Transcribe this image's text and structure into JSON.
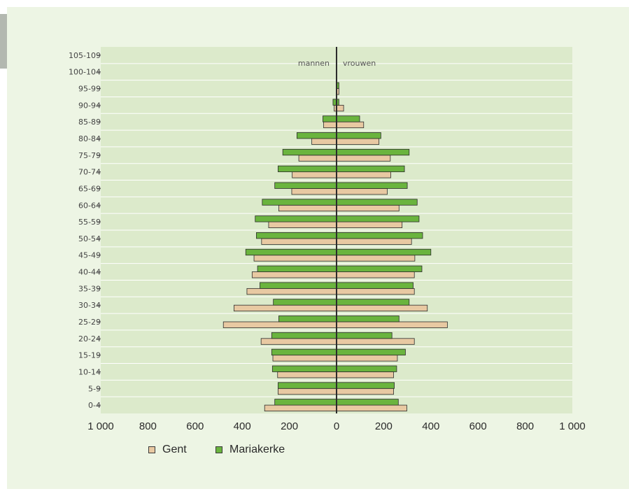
{
  "chart_data": {
    "type": "bar",
    "orientation": "horizontal-population-pyramid",
    "categories": [
      "0-4",
      "5-9",
      "10-14",
      "15-19",
      "20-24",
      "25-29",
      "30-34",
      "35-39",
      "40-44",
      "45-49",
      "50-54",
      "55-59",
      "60-64",
      "65-69",
      "70-74",
      "75-79",
      "80-84",
      "85-89",
      "90-94",
      "95-99",
      "100-104",
      "105-109"
    ],
    "left_label": "mannen",
    "right_label": "vrouwen",
    "xlim": [
      -1000,
      1000
    ],
    "x_ticks": [
      -1000,
      -800,
      -600,
      -400,
      -200,
      0,
      200,
      400,
      600,
      800,
      1000
    ],
    "x_tick_labels": [
      "1 000",
      "800",
      "600",
      "400",
      "200",
      "0",
      "200",
      "400",
      "600",
      "800",
      "1 000"
    ],
    "series": [
      {
        "name": "Gent",
        "color": "#e8c9a2",
        "men": [
          305,
          248,
          250,
          270,
          320,
          480,
          435,
          380,
          358,
          350,
          318,
          288,
          245,
          190,
          188,
          160,
          105,
          55,
          10,
          0,
          0,
          0
        ],
        "women": [
          298,
          242,
          242,
          258,
          330,
          470,
          385,
          330,
          330,
          332,
          318,
          278,
          265,
          215,
          230,
          228,
          180,
          115,
          30,
          10,
          0,
          0
        ]
      },
      {
        "name": "Mariakerke",
        "color": "#6ab43e",
        "men": [
          262,
          248,
          272,
          275,
          275,
          245,
          268,
          325,
          335,
          385,
          340,
          345,
          315,
          262,
          248,
          228,
          168,
          58,
          15,
          0,
          0,
          0
        ],
        "women": [
          262,
          245,
          255,
          292,
          235,
          265,
          308,
          325,
          362,
          400,
          365,
          350,
          342,
          300,
          288,
          308,
          188,
          98,
          10,
          10,
          0,
          0
        ]
      }
    ],
    "grid": true,
    "legend_position": "bottom-left"
  },
  "colors": {
    "panel_bg": "#edf5e4",
    "plot_bg": "#dceacb",
    "gridline": "#ffffff",
    "gent": "#e8c9a2",
    "mariakerke": "#6ab43e",
    "bar_stroke": "#2b2b2b"
  }
}
